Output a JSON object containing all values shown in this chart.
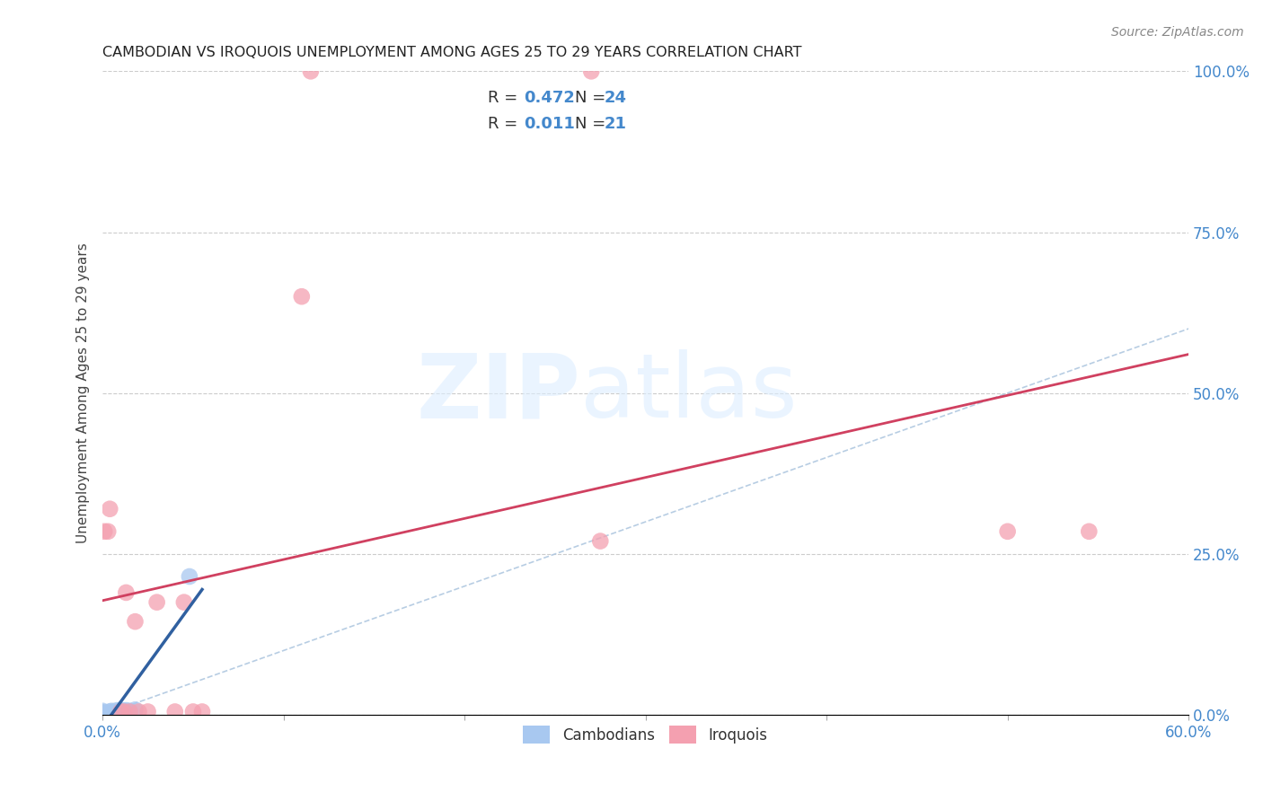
{
  "title": "CAMBODIAN VS IROQUOIS UNEMPLOYMENT AMONG AGES 25 TO 29 YEARS CORRELATION CHART",
  "source": "Source: ZipAtlas.com",
  "ylabel": "Unemployment Among Ages 25 to 29 years",
  "xlim": [
    0.0,
    0.6
  ],
  "ylim": [
    0.0,
    1.0
  ],
  "x_ticks": [
    0.0,
    0.1,
    0.2,
    0.3,
    0.4,
    0.5,
    0.6
  ],
  "x_tick_labels": [
    "0.0%",
    "",
    "",
    "",
    "",
    "",
    "60.0%"
  ],
  "y_tick_labels_right": [
    "0.0%",
    "25.0%",
    "50.0%",
    "75.0%",
    "100.0%"
  ],
  "y_ticks_right": [
    0.0,
    0.25,
    0.5,
    0.75,
    1.0
  ],
  "cambodian_color": "#a8c8f0",
  "iroquois_color": "#f4a0b0",
  "cambodian_R": "0.472",
  "cambodian_N": "24",
  "iroquois_R": "0.011",
  "iroquois_N": "21",
  "watermark_zip": "ZIP",
  "watermark_atlas": "atlas",
  "diagonal_line_color": "#b0c8e0",
  "cambodian_trend_color": "#3060a0",
  "iroquois_trend_color": "#d04060",
  "cambodian_points_x": [
    0.0,
    0.0,
    0.0,
    0.0,
    0.002,
    0.002,
    0.003,
    0.004,
    0.004,
    0.005,
    0.005,
    0.006,
    0.006,
    0.007,
    0.008,
    0.008,
    0.009,
    0.01,
    0.01,
    0.012,
    0.013,
    0.015,
    0.018,
    0.048
  ],
  "cambodian_points_y": [
    0.0,
    0.002,
    0.004,
    0.006,
    0.0,
    0.003,
    0.002,
    0.002,
    0.005,
    0.003,
    0.006,
    0.002,
    0.004,
    0.003,
    0.004,
    0.007,
    0.005,
    0.004,
    0.007,
    0.006,
    0.007,
    0.006,
    0.008,
    0.215
  ],
  "iroquois_points_x": [
    0.001,
    0.003,
    0.004,
    0.01,
    0.012,
    0.013,
    0.015,
    0.018,
    0.02,
    0.025,
    0.03,
    0.04,
    0.045,
    0.05,
    0.055,
    0.11,
    0.115,
    0.27,
    0.275,
    0.5,
    0.545
  ],
  "iroquois_points_y": [
    0.285,
    0.285,
    0.32,
    0.005,
    0.005,
    0.19,
    0.005,
    0.145,
    0.005,
    0.005,
    0.175,
    0.005,
    0.175,
    0.005,
    0.005,
    0.65,
    1.0,
    1.0,
    0.27,
    0.285,
    0.285
  ]
}
